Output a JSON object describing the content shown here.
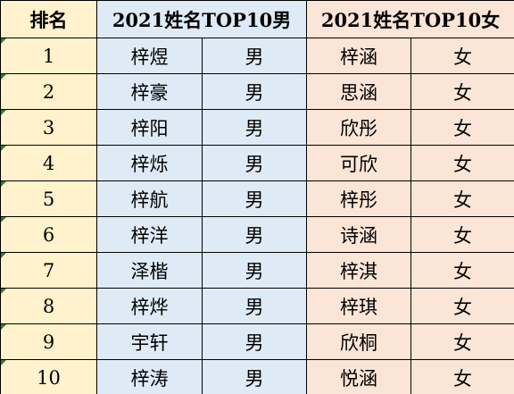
{
  "headers": {
    "rank": "排名",
    "boys": "2021姓名TOP10男",
    "girls": "2021姓名TOP10女"
  },
  "rows": [
    {
      "rank": "1",
      "boy_name": "梓煜",
      "boy_gender": "男",
      "girl_name": "梓涵",
      "girl_gender": "女"
    },
    {
      "rank": "2",
      "boy_name": "梓豪",
      "boy_gender": "男",
      "girl_name": "思涵",
      "girl_gender": "女"
    },
    {
      "rank": "3",
      "boy_name": "梓阳",
      "boy_gender": "男",
      "girl_name": "欣彤",
      "girl_gender": "女"
    },
    {
      "rank": "4",
      "boy_name": "梓烁",
      "boy_gender": "男",
      "girl_name": "可欣",
      "girl_gender": "女"
    },
    {
      "rank": "5",
      "boy_name": "梓航",
      "boy_gender": "男",
      "girl_name": "梓彤",
      "girl_gender": "女"
    },
    {
      "rank": "6",
      "boy_name": "梓洋",
      "boy_gender": "男",
      "girl_name": "诗涵",
      "girl_gender": "女"
    },
    {
      "rank": "7",
      "boy_name": "泽楷",
      "boy_gender": "男",
      "girl_name": "梓淇",
      "girl_gender": "女"
    },
    {
      "rank": "8",
      "boy_name": "梓烨",
      "boy_gender": "男",
      "girl_name": "梓琪",
      "girl_gender": "女"
    },
    {
      "rank": "9",
      "boy_name": "宇轩",
      "boy_gender": "男",
      "girl_name": "欣桐",
      "girl_gender": "女"
    },
    {
      "rank": "10",
      "boy_name": "梓涛",
      "boy_gender": "男",
      "girl_name": "悦涵",
      "girl_gender": "女"
    }
  ],
  "colors": {
    "rank_column": "#fff2cc",
    "boys_section": "#deebf7",
    "girls_section": "#fbe5d6",
    "cell_marker": "#2e7d32"
  }
}
